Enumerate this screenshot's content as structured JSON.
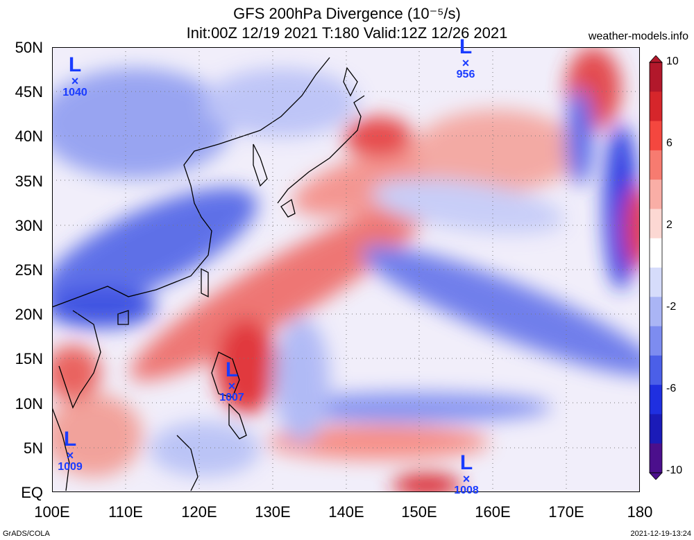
{
  "title_line1": "GFS 200hPa Divergence (10⁻⁵/s)",
  "title_line2": "Init:00Z 12/19 2021 T:180 Valid:12Z 12/26 2021",
  "source": "weather-models.info",
  "footer_left": "GrADS/COLA",
  "footer_right": "2021-12-19-13:24",
  "lat_labels": [
    "50N",
    "45N",
    "40N",
    "35N",
    "30N",
    "25N",
    "20N",
    "15N",
    "10N",
    "5N",
    "EQ"
  ],
  "lon_labels": [
    "100E",
    "110E",
    "120E",
    "130E",
    "140E",
    "150E",
    "160E",
    "170E",
    "180"
  ],
  "colorbar": {
    "labels": [
      "10",
      "6",
      "2",
      "-2",
      "-6",
      "-10"
    ],
    "colors": [
      "#b2182b",
      "#d6262b",
      "#f4473f",
      "#f77b70",
      "#f9aea6",
      "#fcd8d3",
      "#ffffff",
      "#d6dcfb",
      "#aab5f5",
      "#7d8cf0",
      "#4b5fe8",
      "#1f2fe0",
      "#1b1bb8",
      "#4b0f8c"
    ]
  },
  "lows": [
    {
      "symbol": "L",
      "mark": "×",
      "pressure": "1040"
    },
    {
      "symbol": "L",
      "mark": "×",
      "pressure": "956"
    },
    {
      "symbol": "L",
      "mark": "×",
      "pressure": "1007"
    },
    {
      "symbol": "L",
      "mark": "×",
      "pressure": "1009"
    },
    {
      "symbol": "L",
      "mark": "×",
      "pressure": "1008"
    }
  ]
}
